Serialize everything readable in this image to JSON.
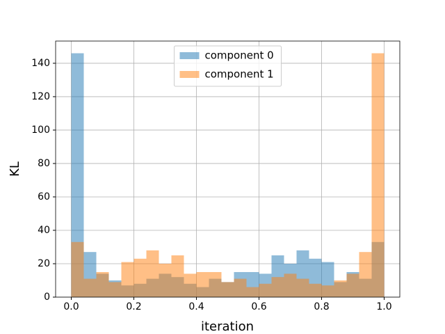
{
  "chart_data": {
    "type": "histogram",
    "xlabel": "iteration",
    "ylabel": "KL",
    "bins": [
      0,
      0.04,
      0.08,
      0.12,
      0.16,
      0.2,
      0.24,
      0.28,
      0.32,
      0.36,
      0.4,
      0.44,
      0.48,
      0.52,
      0.56,
      0.6,
      0.64,
      0.68,
      0.72,
      0.76,
      0.8,
      0.84,
      0.88,
      0.92,
      0.96,
      1.0
    ],
    "series": [
      {
        "name": "component 0",
        "color": "#1f77b4",
        "alpha": 0.5,
        "values": [
          146,
          27,
          14,
          10,
          7,
          8,
          11,
          14,
          12,
          8,
          6,
          11,
          9,
          15,
          15,
          14,
          25,
          20,
          28,
          23,
          21,
          9,
          15,
          11,
          33
        ]
      },
      {
        "name": "component 1",
        "color": "#ff7f0e",
        "alpha": 0.5,
        "values": [
          33,
          11,
          15,
          9,
          21,
          23,
          28,
          20,
          25,
          14,
          15,
          15,
          9,
          11,
          6,
          8,
          12,
          14,
          11,
          8,
          7,
          10,
          14,
          27,
          146
        ]
      }
    ],
    "xlim": [
      -0.05,
      1.05
    ],
    "ylim": [
      0,
      153.3
    ],
    "xticks": [
      {
        "value": 0,
        "label": "0.0"
      },
      {
        "value": 0.2,
        "label": "0.2"
      },
      {
        "value": 0.4,
        "label": "0.4"
      },
      {
        "value": 0.6,
        "label": "0.6"
      },
      {
        "value": 0.8,
        "label": "0.8"
      },
      {
        "value": 1.0,
        "label": "1.0"
      }
    ],
    "yticks": [
      0,
      20,
      40,
      60,
      80,
      100,
      120,
      140
    ],
    "grid": true,
    "legend": "upper center"
  }
}
